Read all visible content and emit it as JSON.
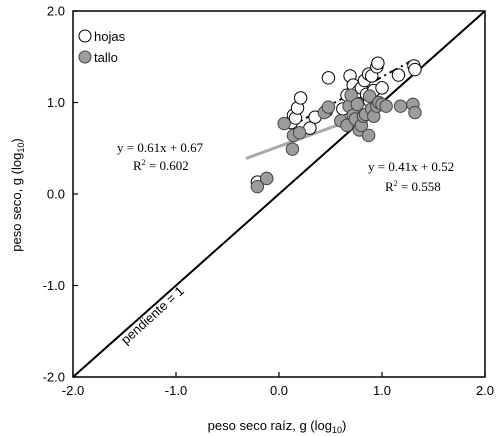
{
  "chart_data": {
    "type": "scatter",
    "xlabel": "peso seco raíz, g (log",
    "xlabel_sub": "10",
    "xlabel_close": ")",
    "ylabel": "peso seco, g (log",
    "ylabel_sub": "10",
    "ylabel_close": ")",
    "xlim": [
      -2.0,
      2.0
    ],
    "ylim": [
      -2.0,
      2.0
    ],
    "xticks": [
      -2.0,
      -1.0,
      0.0,
      1.0,
      2.0
    ],
    "yticks": [
      -2.0,
      -1.0,
      0.0,
      1.0,
      2.0
    ],
    "xtick_labels": [
      "-2.0",
      "-1.0",
      "0.0",
      "1.0",
      "2.0"
    ],
    "ytick_labels": [
      "-2.0",
      "-1.0",
      "0.0",
      "1.0",
      "2.0"
    ],
    "grid": false,
    "legend_position": "top-left",
    "series": [
      {
        "name": "hojas",
        "marker": "open-circle",
        "color": "#000000",
        "fill": "#ffffff",
        "points": [
          [
            -0.21,
            0.13
          ],
          [
            -0.12,
            0.17
          ],
          [
            0.12,
            0.78
          ],
          [
            0.14,
            0.86
          ],
          [
            0.16,
            0.83
          ],
          [
            0.18,
            0.94
          ],
          [
            0.21,
            1.05
          ],
          [
            0.3,
            0.72
          ],
          [
            0.35,
            0.84
          ],
          [
            0.46,
            0.91
          ],
          [
            0.48,
            1.27
          ],
          [
            0.62,
            0.93
          ],
          [
            0.66,
            1.08
          ],
          [
            0.69,
            1.29
          ],
          [
            0.72,
            1.19
          ],
          [
            0.74,
            1.03
          ],
          [
            0.77,
            1.12
          ],
          [
            0.8,
            1.16
          ],
          [
            0.83,
            1.24
          ],
          [
            0.85,
            1.09
          ],
          [
            0.87,
            1.31
          ],
          [
            0.88,
            1.02
          ],
          [
            0.9,
            1.29
          ],
          [
            0.92,
            1.13
          ],
          [
            0.95,
            1.39
          ],
          [
            0.96,
            1.43
          ],
          [
            1.0,
            1.16
          ],
          [
            1.16,
            1.3
          ],
          [
            1.31,
            1.4
          ],
          [
            1.32,
            1.36
          ]
        ]
      },
      {
        "name": "tallo",
        "marker": "filled-circle",
        "color": "#444444",
        "fill": "#9c9c9c",
        "points": [
          [
            -0.21,
            0.08
          ],
          [
            -0.12,
            0.17
          ],
          [
            0.05,
            0.77
          ],
          [
            0.13,
            0.49
          ],
          [
            0.14,
            0.64
          ],
          [
            0.2,
            0.67
          ],
          [
            0.44,
            0.89
          ],
          [
            0.48,
            0.95
          ],
          [
            0.6,
            0.8
          ],
          [
            0.66,
            0.75
          ],
          [
            0.68,
            0.96
          ],
          [
            0.7,
            1.08
          ],
          [
            0.72,
            0.86
          ],
          [
            0.74,
            0.82
          ],
          [
            0.76,
            0.98
          ],
          [
            0.78,
            0.7
          ],
          [
            0.8,
            0.75
          ],
          [
            0.82,
            0.85
          ],
          [
            0.84,
            0.87
          ],
          [
            0.87,
            0.64
          ],
          [
            0.88,
            1.07
          ],
          [
            0.9,
            0.93
          ],
          [
            0.92,
            0.85
          ],
          [
            0.95,
            0.96
          ],
          [
            0.97,
            1.0
          ],
          [
            1.0,
            0.98
          ],
          [
            1.04,
            0.96
          ],
          [
            1.18,
            0.96
          ],
          [
            1.3,
            0.98
          ],
          [
            1.32,
            0.89
          ]
        ]
      }
    ],
    "fit_lines": [
      {
        "series": "hojas",
        "style": "dash-dot",
        "color": "#000000",
        "x": [
          0.1,
          1.27
        ],
        "slope": 0.61,
        "intercept": 0.67
      },
      {
        "series": "tallo",
        "style": "solid",
        "color": "#a9a9a9",
        "x": [
          -0.32,
          0.98
        ],
        "slope": 0.41,
        "intercept": 0.52
      },
      {
        "series": "1:1",
        "style": "solid",
        "color": "#000000",
        "x": [
          -2.0,
          2.0
        ],
        "slope": 1.0,
        "intercept": 0.0
      }
    ],
    "annotations": {
      "eq_hojas": "y = 0.61x + 0.67",
      "r2_hojas_label": "R",
      "r2_hojas_sup": "2",
      "r2_hojas_value": " = 0.602",
      "eq_tallo": "y = 0.41x + 0.52",
      "r2_tallo_label": "R",
      "r2_tallo_sup": "2",
      "r2_tallo_value": " = 0.558",
      "slope_label": "pendiente = 1"
    }
  }
}
